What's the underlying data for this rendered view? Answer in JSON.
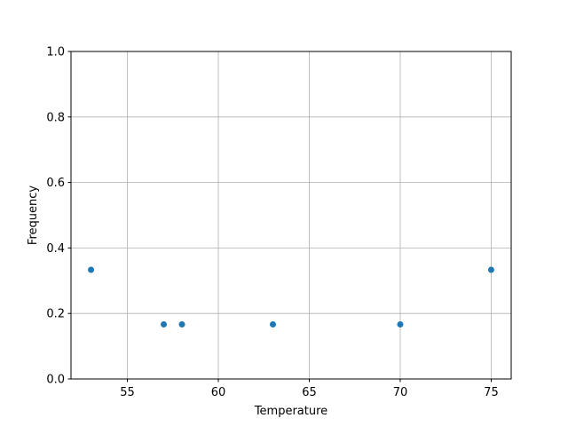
{
  "chart_data": {
    "type": "scatter",
    "title": "",
    "xlabel": "Temperature",
    "ylabel": "Frequency",
    "xlim": [
      51.9,
      76.1
    ],
    "ylim": [
      0,
      1.0
    ],
    "xticks": [
      55,
      60,
      65,
      70,
      75
    ],
    "xtick_labels": [
      "55",
      "60",
      "65",
      "70",
      "75"
    ],
    "yticks": [
      0,
      0.2,
      0.4,
      0.6,
      0.8,
      1.0
    ],
    "ytick_labels": [
      "0.0",
      "0.2",
      "0.4",
      "0.6",
      "0.8",
      "1.0"
    ],
    "grid": true,
    "color": "#1f77b4",
    "x": [
      53,
      57,
      58,
      63,
      70,
      75
    ],
    "y": [
      0.3333,
      0.1667,
      0.1667,
      0.1667,
      0.1667,
      0.3333
    ]
  }
}
